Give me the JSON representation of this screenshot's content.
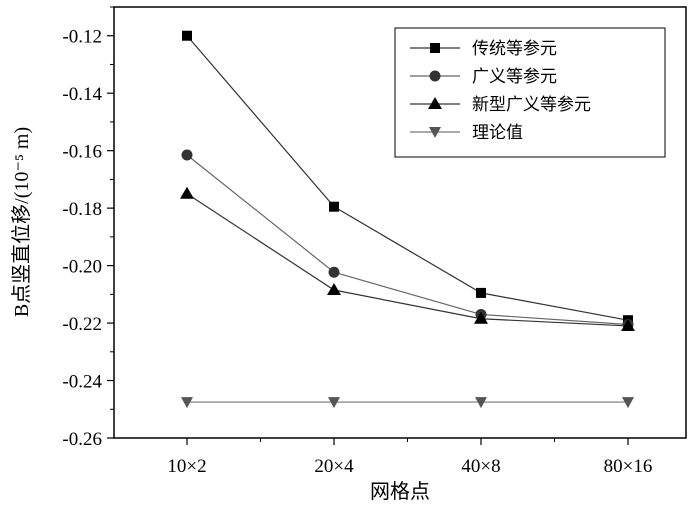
{
  "chart_data": {
    "type": "line",
    "xlabel": "网格点",
    "ylabel": "B点竖直位移/(10⁻⁵ m)",
    "categories": [
      "10×2",
      "20×4",
      "40×8",
      "80×16"
    ],
    "ylim": [
      -0.26,
      -0.11
    ],
    "yticks": [
      -0.12,
      -0.14,
      -0.16,
      -0.18,
      -0.2,
      -0.22,
      -0.24,
      -0.26
    ],
    "ytick_labels": [
      "-0.12",
      "-0.14",
      "-0.16",
      "-0.18",
      "-0.20",
      "-0.22",
      "-0.24",
      "-0.26"
    ],
    "grid": false,
    "legend_position": "top-right",
    "series": [
      {
        "name": "传统等参元",
        "marker": "square",
        "color": "#000000",
        "line_color": "#333333",
        "values": [
          -0.12,
          -0.1795,
          -0.2095,
          -0.219
        ]
      },
      {
        "name": "广义等参元",
        "marker": "circle",
        "color": "#333333",
        "line_color": "#666666",
        "values": [
          -0.1615,
          -0.2023,
          -0.217,
          -0.2205
        ]
      },
      {
        "name": "新型广义等参元",
        "marker": "triangle-up",
        "color": "#000000",
        "line_color": "#333333",
        "values": [
          -0.175,
          -0.2085,
          -0.2185,
          -0.221
        ]
      },
      {
        "name": "理论值",
        "marker": "triangle-down",
        "color": "#555555",
        "line_color": "#777777",
        "values": [
          -0.2475,
          -0.2475,
          -0.2475,
          -0.2475
        ]
      }
    ]
  }
}
